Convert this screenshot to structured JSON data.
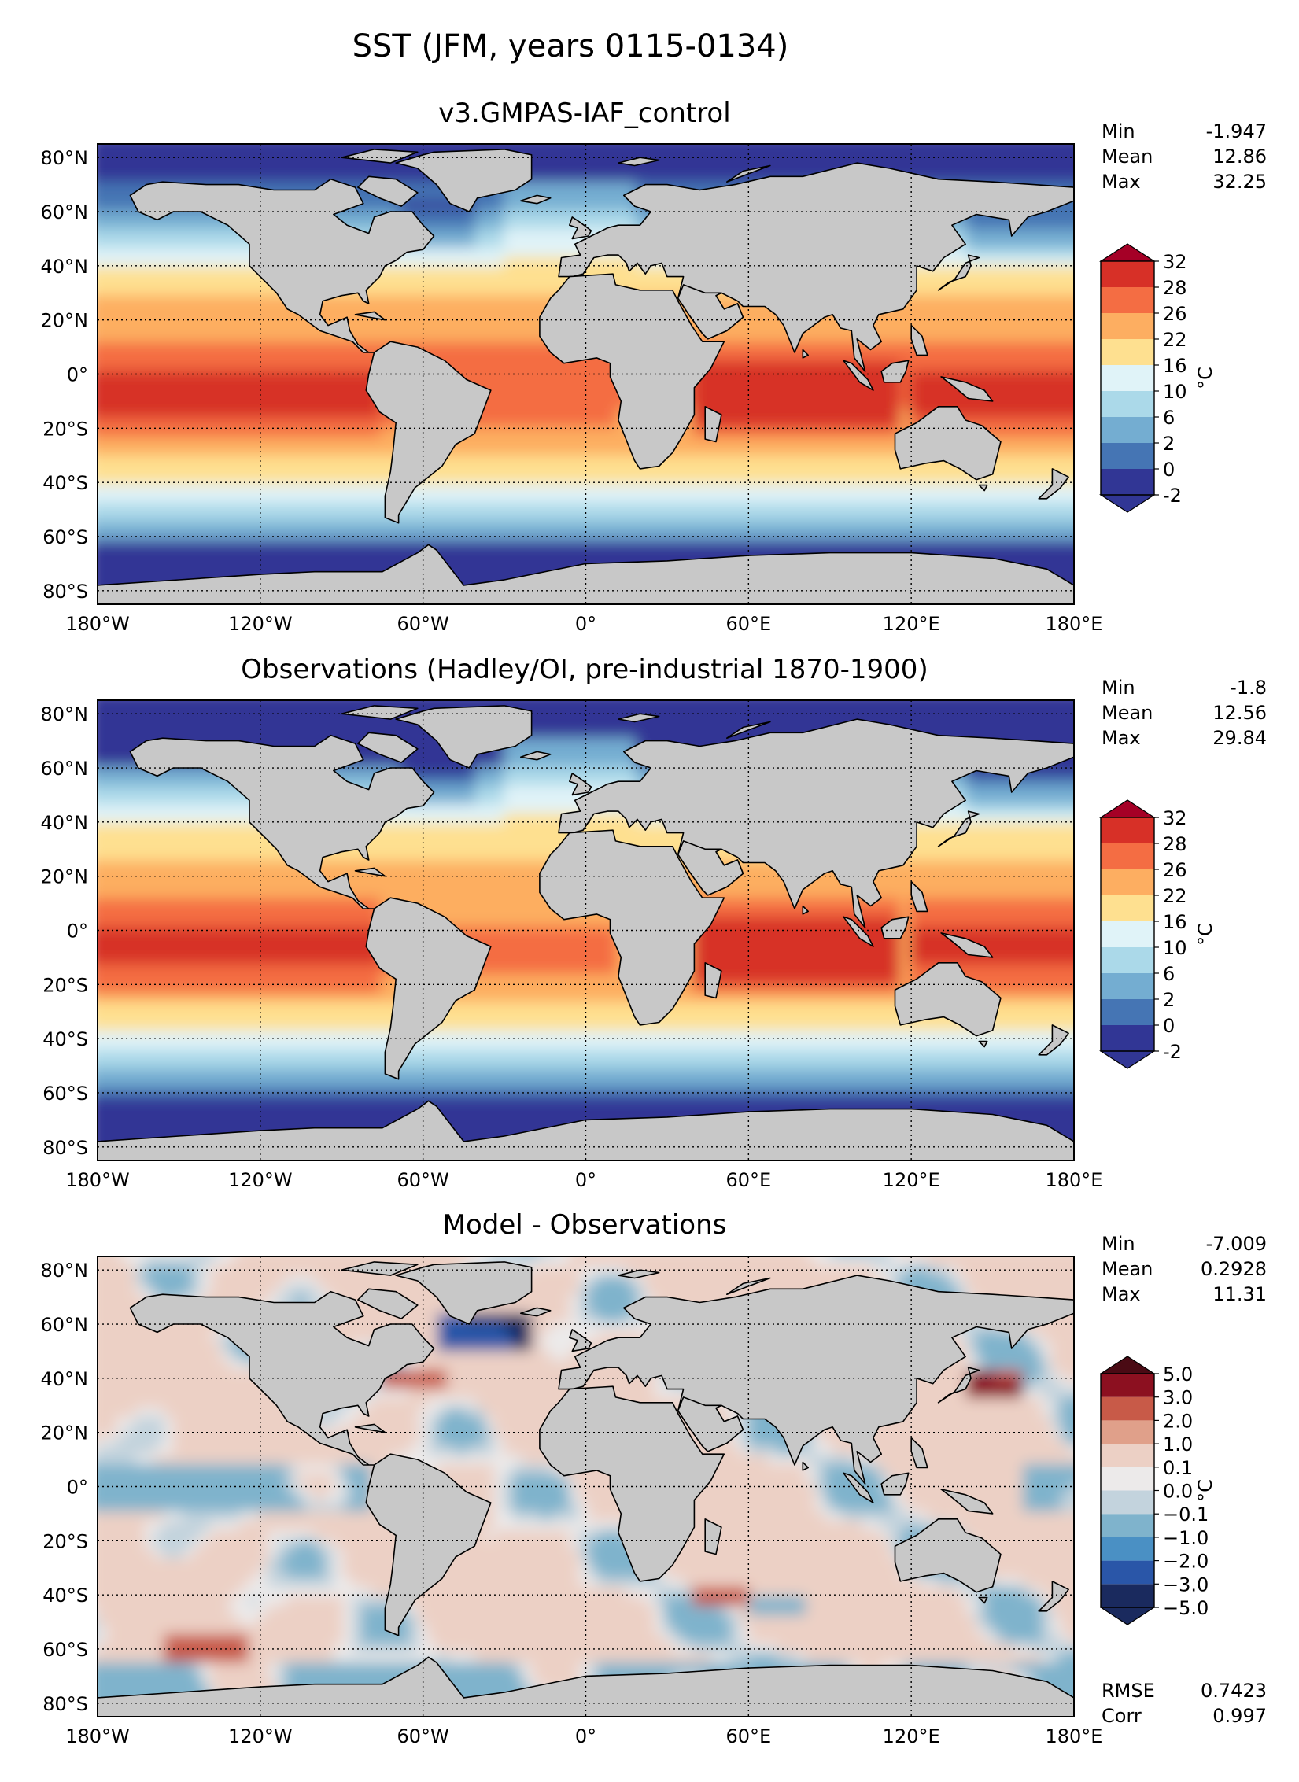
{
  "figure": {
    "title": "SST (JFM, years 0115-0134)"
  },
  "colors": {
    "land": "#c8c8c8",
    "sst_levels": [
      "#313695",
      "#4575b4",
      "#74add1",
      "#abd9e9",
      "#e0f3f8",
      "#fee090",
      "#fdae61",
      "#f46d43",
      "#d73027",
      "#a50026"
    ],
    "diff_levels": [
      "#1a2a5e",
      "#2a56a8",
      "#4a90c4",
      "#7fb3cc",
      "#c3d3dd",
      "#eceaea",
      "#ecd0c5",
      "#e0a08a",
      "#c85a48",
      "#8c1020",
      "#4a0a14"
    ]
  },
  "chart_data": [
    {
      "type": "heatmap",
      "title": "v3.GMPAS-IAF_control",
      "field": "model",
      "xlim": [
        -180,
        180
      ],
      "ylim": [
        -85,
        85
      ],
      "xticks": [
        "180°W",
        "120°W",
        "60°W",
        "0°",
        "60°E",
        "120°E",
        "180°E"
      ],
      "yticks": [
        "80°N",
        "60°N",
        "40°N",
        "20°N",
        "0°",
        "20°S",
        "40°S",
        "60°S",
        "80°S"
      ],
      "stats": {
        "Min": "-1.947",
        "Mean": "12.86",
        "Max": "32.25"
      },
      "colorbar": {
        "levels": [
          "-2",
          "0",
          "2",
          "6",
          "10",
          "16",
          "22",
          "26",
          "28",
          "32"
        ],
        "units": "°C"
      },
      "colorbar_pos_levels": [
        -2,
        0,
        2,
        6,
        10,
        16,
        22,
        26,
        28,
        32
      ]
    },
    {
      "type": "heatmap",
      "title": "Observations (Hadley/OI, pre-industrial 1870-1900)",
      "field": "obs",
      "xlim": [
        -180,
        180
      ],
      "ylim": [
        -85,
        85
      ],
      "xticks": [
        "180°W",
        "120°W",
        "60°W",
        "0°",
        "60°E",
        "120°E",
        "180°E"
      ],
      "yticks": [
        "80°N",
        "60°N",
        "40°N",
        "20°N",
        "0°",
        "20°S",
        "40°S",
        "60°S",
        "80°S"
      ],
      "stats": {
        "Min": "-1.8",
        "Mean": "12.56",
        "Max": "29.84"
      },
      "colorbar": {
        "levels": [
          "-2",
          "0",
          "2",
          "6",
          "10",
          "16",
          "22",
          "26",
          "28",
          "32"
        ],
        "units": "°C"
      },
      "colorbar_pos_levels": [
        -2,
        0,
        2,
        6,
        10,
        16,
        22,
        26,
        28,
        32
      ]
    },
    {
      "type": "heatmap",
      "title": "Model - Observations",
      "field": "diff",
      "xlim": [
        -180,
        180
      ],
      "ylim": [
        -85,
        85
      ],
      "xticks": [
        "180°W",
        "120°W",
        "60°W",
        "0°",
        "60°E",
        "120°E",
        "180°E"
      ],
      "yticks": [
        "80°N",
        "60°N",
        "40°N",
        "20°N",
        "0°",
        "20°S",
        "40°S",
        "60°S",
        "80°S"
      ],
      "stats": {
        "Min": "-7.009",
        "Mean": "0.2928",
        "Max": "11.31"
      },
      "extra_stats": {
        "RMSE": "0.7423",
        "Corr": "0.997"
      },
      "colorbar": {
        "levels": [
          "−5.0",
          "−3.0",
          "−2.0",
          "−1.0",
          "−0.1",
          "0.0",
          "0.1",
          "1.0",
          "2.0",
          "3.0",
          "5.0"
        ],
        "units": "°C"
      },
      "colorbar_pos_levels": [
        -5,
        -3,
        -2,
        -1,
        -0.1,
        0,
        0.1,
        1,
        2,
        3,
        5
      ]
    }
  ]
}
